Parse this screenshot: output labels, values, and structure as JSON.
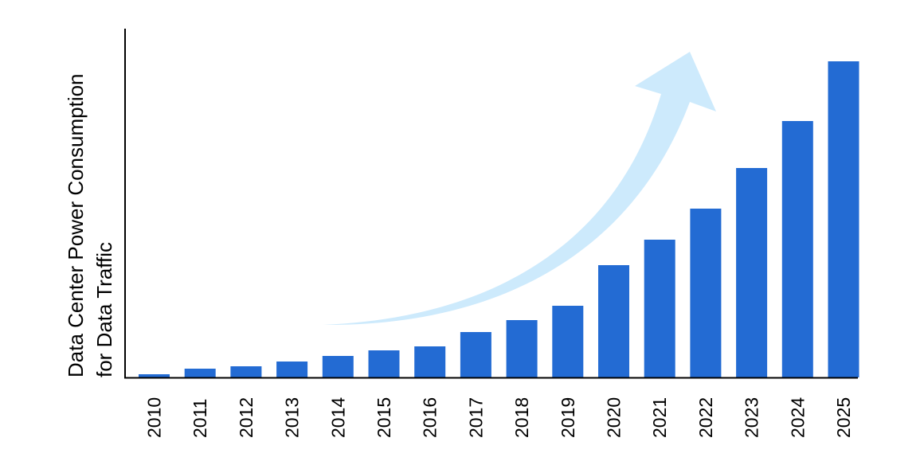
{
  "chart_data": {
    "type": "bar",
    "title": "",
    "xlabel": "",
    "ylabel": "Data Center Power Consumption for Data Traffic",
    "ylabel_lines": [
      "Data Center Power Consumption",
      "for Data Traffic"
    ],
    "categories": [
      "2010",
      "2011",
      "2012",
      "2013",
      "2014",
      "2015",
      "2016",
      "2017",
      "2018",
      "2019",
      "2020",
      "2021",
      "2022",
      "2023",
      "2024",
      "2025"
    ],
    "values": [
      4,
      11,
      14,
      20,
      27,
      34,
      39,
      57,
      72,
      90,
      141,
      173,
      212,
      263,
      322,
      397
    ],
    "value_units": "relative (no y-axis scale shown)",
    "ylim": [
      0,
      437
    ],
    "grid": false,
    "legend": null,
    "annotations": [
      "curved upward trend arrow"
    ],
    "colors": {
      "bar": "#236bd3",
      "arrow": "#cdeafc",
      "axis": "#000000"
    }
  }
}
